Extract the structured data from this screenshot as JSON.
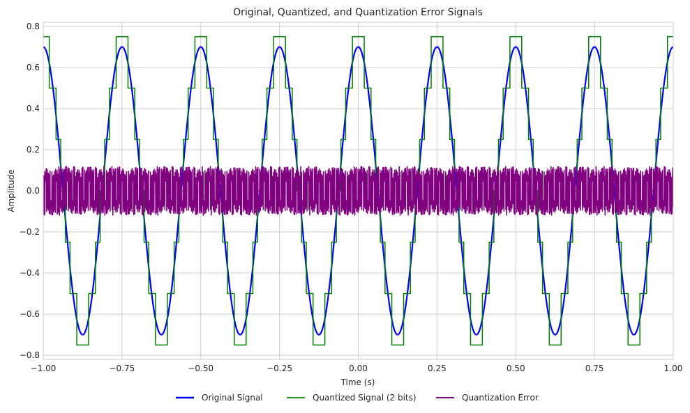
{
  "chart_data": {
    "type": "line",
    "title": "Original, Quantized, and Quantization Error Signals",
    "xlabel": "Time (s)",
    "ylabel": "Amplitude",
    "xlim": [
      -1.0,
      1.0
    ],
    "ylim": [
      -0.82,
      0.82
    ],
    "x_ticks": [
      -1.0,
      -0.75,
      -0.5,
      -0.25,
      0.0,
      0.25,
      0.5,
      0.75,
      1.0
    ],
    "x_tick_labels": [
      "−1.00",
      "−0.75",
      "−0.50",
      "−0.25",
      "0.00",
      "0.25",
      "0.50",
      "0.75",
      "1.00"
    ],
    "y_ticks": [
      -0.8,
      -0.6,
      -0.4,
      -0.2,
      0.0,
      0.2,
      0.4,
      0.6,
      0.8
    ],
    "y_tick_labels": [
      "−0.8",
      "−0.6",
      "−0.4",
      "−0.2",
      "0.0",
      "0.2",
      "0.4",
      "0.6",
      "0.8"
    ],
    "grid": true,
    "legend_position": "bottom-center",
    "signal": {
      "amplitude": 0.7,
      "frequency_hz": 4,
      "phase": "cosine",
      "bits": 2,
      "quantization_levels": [
        -0.75,
        -0.5,
        -0.25,
        0.0,
        0.25,
        0.5,
        0.75
      ]
    },
    "series": [
      {
        "name": "Original Signal",
        "color": "#0000ff",
        "style": "line"
      },
      {
        "name": "Quantized Signal (2 bits)",
        "color": "#008000",
        "style": "step"
      },
      {
        "name": "Quantization Error",
        "color": "#800080",
        "style": "line"
      }
    ]
  }
}
